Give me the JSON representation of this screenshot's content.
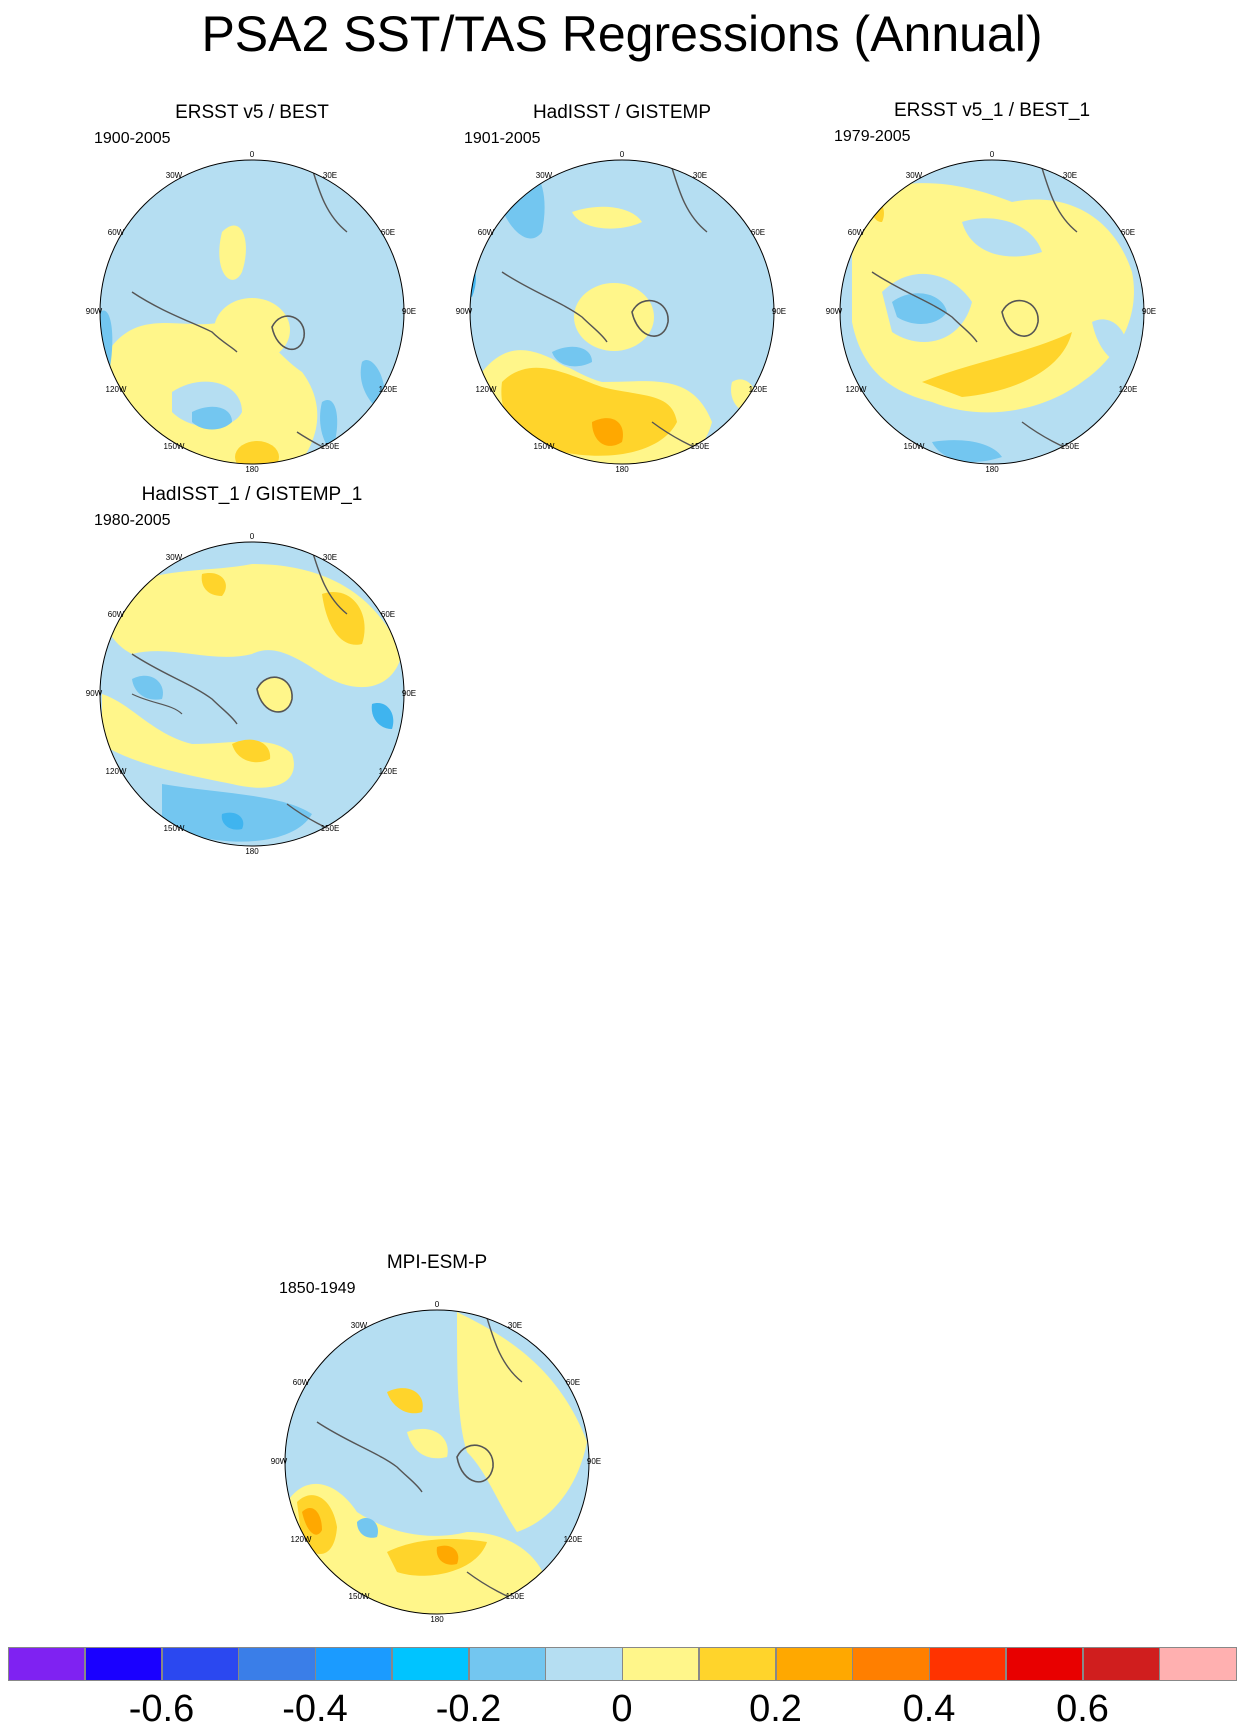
{
  "title": "PSA2 SST/TAS Regressions (Annual)",
  "palette": {
    "ocean_neg": "#b5def2",
    "ocean_neg2": "#73c6f0",
    "ocean_neg3": "#3fb4ef",
    "land_pos": "#fff68a",
    "pos2": "#ffd42b",
    "pos3": "#ffa800",
    "pos4": "#ff7f00",
    "coast": "#555555"
  },
  "lon_labels": [
    "0",
    "30E",
    "60E",
    "90E",
    "120E",
    "150E",
    "180",
    "150W",
    "120W",
    "90W",
    "60W",
    "30W"
  ],
  "panels": [
    {
      "id": "ersst-best",
      "title": "ERSST v5 / BEST",
      "years": "1900-2005"
    },
    {
      "id": "hadisst-gistemp",
      "title": "HadISST / GISTEMP",
      "years": "1901-2005"
    },
    {
      "id": "ersst1-best1",
      "title": "ERSST v5_1 / BEST_1",
      "years": "1979-2005"
    },
    {
      "id": "hadisst1-gistemp1",
      "title": "HadISST_1 / GISTEMP_1",
      "years": "1980-2005"
    },
    {
      "id": "mpi-esm-p",
      "title": "MPI-ESM-P",
      "years": "1850-1949"
    }
  ],
  "colorbar": {
    "colors": [
      "#7f22f2",
      "#1a00ff",
      "#2b48f0",
      "#3a7ee8",
      "#1b9bff",
      "#00c4ff",
      "#73c6f0",
      "#b5def2",
      "#fff68a",
      "#ffd42b",
      "#ffa800",
      "#ff7f00",
      "#ff3300",
      "#e80000",
      "#d01e1e",
      "#ffb0b0"
    ],
    "tick_labels": [
      "-0.6",
      "-0.4",
      "-0.2",
      "0",
      "0.2",
      "0.4",
      "0.6"
    ]
  }
}
